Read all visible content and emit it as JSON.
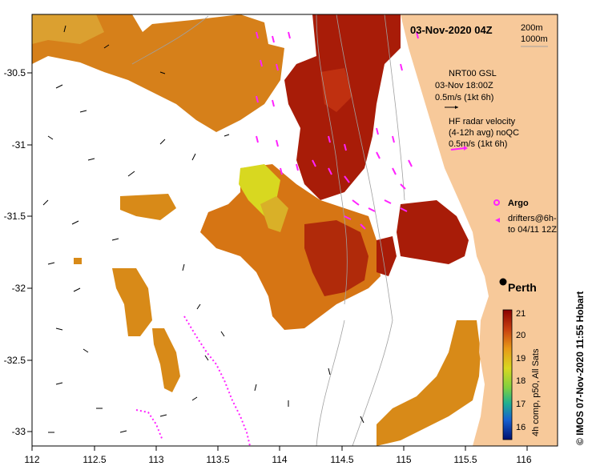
{
  "map": {
    "title": "03-Nov-2020 04Z",
    "depth_contours": [
      "200m",
      "1000m"
    ],
    "city": "Perth",
    "x_ticks": [
      "112",
      "112.5",
      "113",
      "113.5",
      "114",
      "114.5",
      "115",
      "115.5",
      "116"
    ],
    "y_ticks": [
      "-30.5",
      "-31",
      "-31.5",
      "-32",
      "-32.5",
      "-33"
    ]
  },
  "legend": {
    "nrt_line1": "NRT00 GSL",
    "nrt_line2": "03-Nov 18:00Z",
    "nrt_line3": "0.5m/s (1kt 6h)",
    "hf_line1": "HF radar velocity",
    "hf_line2": "(4-12h avg) noQC",
    "hf_line3": "0.5m/s (1kt 6h)",
    "argo_label": "Argo",
    "drifters_line1": "drifters@6h-",
    "drifters_line2": "to 04/11 12Z"
  },
  "colorbar": {
    "ticks": [
      "21",
      "20",
      "19",
      "18",
      "17",
      "16"
    ],
    "label": "4h comp, p50, All Sats"
  },
  "credit": "© IMOS 07-Nov-2020 11:55 Hobart",
  "colors": {
    "land": "#f7c99a",
    "sst_hot": "#a81c08",
    "sst_warm": "#d66a10",
    "sst_mid": "#e0900f",
    "sst_light": "#d9a428",
    "sst_yellow": "#d8d820",
    "hf_vectors": "#ff22ff",
    "contour": "#a0a0a0"
  }
}
